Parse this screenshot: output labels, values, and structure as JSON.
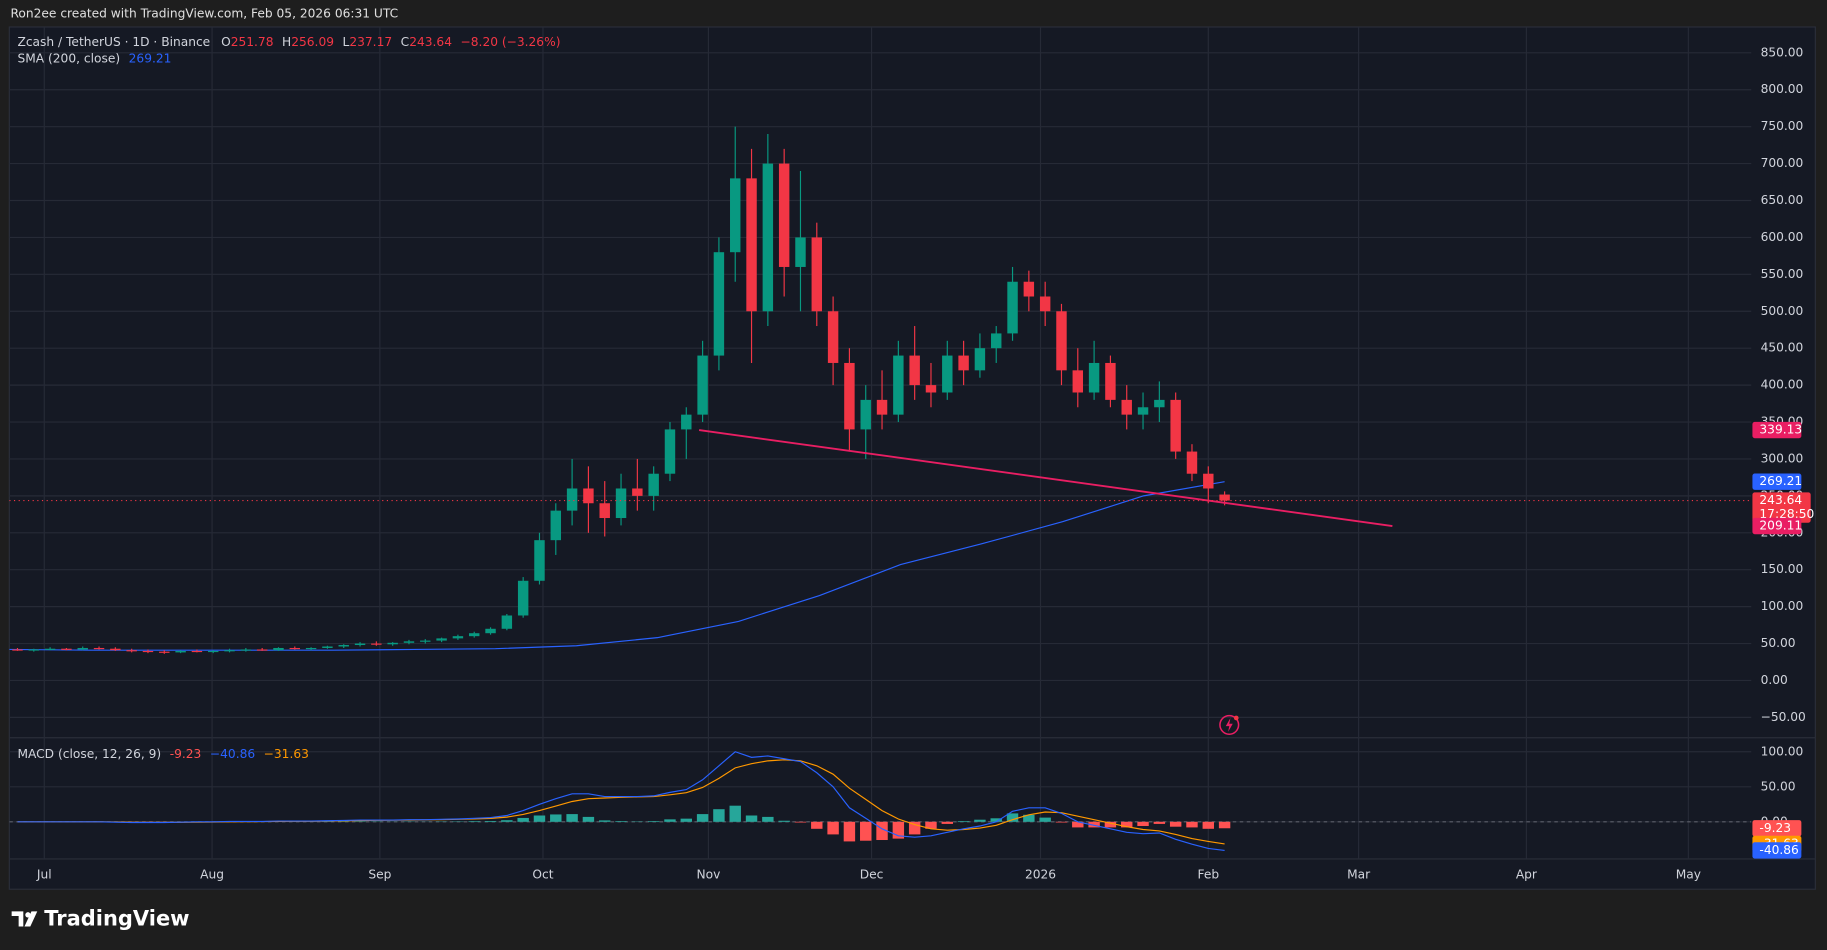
{
  "header": {
    "attribution": "Ron2ee created with TradingView.com, Feb 05, 2026 06:31 UTC"
  },
  "footer": {
    "brand": "TradingView"
  },
  "chart_data": [
    {
      "type": "candlestick",
      "title": "Zcash / TetherUS · 1D · Binance",
      "ohlc_labels": [
        "O",
        "H",
        "L",
        "C"
      ],
      "ohlc": [
        251.78,
        256.09,
        237.17,
        243.64
      ],
      "change": "−8.20 (−3.26%)",
      "countdown": "17:28:50",
      "colors": {
        "up": "#089981",
        "down": "#f23645"
      },
      "ylim": [
        -76,
        885
      ],
      "yticks": [
        {
          "value": -50,
          "label": "−50.00"
        },
        {
          "value": 0,
          "label": "0.00"
        },
        {
          "value": 50,
          "label": "50.00"
        },
        {
          "value": 100,
          "label": "100.00"
        },
        {
          "value": 150,
          "label": "150.00"
        },
        {
          "value": 200,
          "label": "200.00"
        },
        {
          "value": 250,
          "label": "250.00"
        },
        {
          "value": 300,
          "label": "300.00"
        },
        {
          "value": 350,
          "label": "350.00"
        },
        {
          "value": 400,
          "label": "400.00"
        },
        {
          "value": 450,
          "label": "450.00"
        },
        {
          "value": 500,
          "label": "500.00"
        },
        {
          "value": 550,
          "label": "550.00"
        },
        {
          "value": 600,
          "label": "600.00"
        },
        {
          "value": 650,
          "label": "650.00"
        },
        {
          "value": 700,
          "label": "700.00"
        },
        {
          "value": 750,
          "label": "750.00"
        },
        {
          "value": 800,
          "label": "800.00"
        },
        {
          "value": 850,
          "label": "850.00"
        }
      ],
      "time_axis": [
        "Jul",
        "Aug",
        "Sep",
        "Oct",
        "Nov",
        "Dec",
        "2026",
        "Feb",
        "Mar",
        "Apr",
        "May"
      ],
      "grid": true,
      "candles": [
        [
          42,
          44,
          40,
          41
        ],
        [
          41,
          43,
          39,
          42
        ],
        [
          42,
          45,
          41,
          43
        ],
        [
          43,
          44,
          41,
          42
        ],
        [
          42,
          46,
          41,
          44
        ],
        [
          44,
          46,
          42,
          43
        ],
        [
          43,
          45,
          40,
          41
        ],
        [
          41,
          43,
          38,
          40
        ],
        [
          40,
          42,
          37,
          39
        ],
        [
          39,
          41,
          36,
          38
        ],
        [
          38,
          41,
          37,
          40
        ],
        [
          40,
          42,
          38,
          39
        ],
        [
          39,
          41,
          37,
          40
        ],
        [
          40,
          43,
          38,
          41
        ],
        [
          41,
          44,
          39,
          42
        ],
        [
          42,
          44,
          40,
          41
        ],
        [
          41,
          45,
          40,
          44
        ],
        [
          44,
          46,
          42,
          43
        ],
        [
          43,
          45,
          41,
          44
        ],
        [
          44,
          47,
          43,
          46
        ],
        [
          46,
          49,
          44,
          48
        ],
        [
          48,
          52,
          46,
          50
        ],
        [
          50,
          53,
          47,
          49
        ],
        [
          49,
          52,
          47,
          51
        ],
        [
          51,
          55,
          49,
          53
        ],
        [
          53,
          56,
          50,
          54
        ],
        [
          54,
          58,
          52,
          57
        ],
        [
          57,
          62,
          55,
          60
        ],
        [
          60,
          66,
          58,
          64
        ],
        [
          64,
          72,
          62,
          70
        ],
        [
          70,
          90,
          68,
          88
        ],
        [
          88,
          140,
          85,
          135
        ],
        [
          135,
          200,
          130,
          190
        ],
        [
          190,
          240,
          170,
          230
        ],
        [
          230,
          300,
          210,
          260
        ],
        [
          260,
          290,
          200,
          240
        ],
        [
          240,
          270,
          195,
          220
        ],
        [
          220,
          280,
          210,
          260
        ],
        [
          260,
          300,
          230,
          250
        ],
        [
          250,
          290,
          230,
          280
        ],
        [
          280,
          350,
          270,
          340
        ],
        [
          340,
          370,
          300,
          360
        ],
        [
          360,
          460,
          350,
          440
        ],
        [
          440,
          600,
          420,
          580
        ],
        [
          580,
          750,
          540,
          680
        ],
        [
          680,
          720,
          430,
          500
        ],
        [
          500,
          740,
          480,
          700
        ],
        [
          700,
          720,
          520,
          560
        ],
        [
          560,
          690,
          500,
          600
        ],
        [
          600,
          620,
          480,
          500
        ],
        [
          500,
          520,
          400,
          430
        ],
        [
          430,
          450,
          310,
          340
        ],
        [
          340,
          400,
          300,
          380
        ],
        [
          380,
          420,
          340,
          360
        ],
        [
          360,
          460,
          350,
          440
        ],
        [
          440,
          480,
          380,
          400
        ],
        [
          400,
          430,
          370,
          390
        ],
        [
          390,
          460,
          380,
          440
        ],
        [
          440,
          460,
          400,
          420
        ],
        [
          420,
          470,
          410,
          450
        ],
        [
          450,
          480,
          430,
          470
        ],
        [
          470,
          560,
          460,
          540
        ],
        [
          540,
          555,
          500,
          520
        ],
        [
          520,
          540,
          480,
          500
        ],
        [
          500,
          510,
          400,
          420
        ],
        [
          420,
          450,
          370,
          390
        ],
        [
          390,
          460,
          380,
          430
        ],
        [
          430,
          440,
          370,
          380
        ],
        [
          380,
          400,
          340,
          360
        ],
        [
          360,
          390,
          340,
          370
        ],
        [
          370,
          405,
          350,
          380
        ],
        [
          380,
          390,
          300,
          310
        ],
        [
          310,
          320,
          270,
          280
        ],
        [
          280,
          290,
          240,
          260
        ],
        [
          251.78,
          256.09,
          237.17,
          243.64
        ]
      ],
      "sma": {
        "name": "SMA (200, close)",
        "color": "#2962ff",
        "values": [
          42,
          41,
          41,
          41,
          41,
          42,
          43,
          47,
          58,
          80,
          115,
          157,
          185,
          215,
          250,
          269.21
        ]
      },
      "trendline": {
        "color": "#e91e63",
        "values": [
          339.13,
          209.11
        ]
      }
    },
    {
      "type": "macd",
      "title": "MACD (close, 12, 26, 9)",
      "legend": [
        "-9.23",
        "−40.86",
        "−31.63"
      ],
      "ylim": [
        -53,
        120
      ],
      "yticks": [
        {
          "value": 0,
          "label": "0.00"
        },
        {
          "value": 50,
          "label": "50.00"
        },
        {
          "value": 100,
          "label": "100.00"
        }
      ],
      "histogram": {
        "color_up": "#26a69a",
        "color_down": "#ff5252",
        "badge": "-9.23",
        "values": [
          0,
          0,
          0,
          0,
          0,
          0,
          -0.3,
          -0.5,
          -0.3,
          -0.2,
          0.2,
          0.5,
          0.3,
          0.5,
          0.3,
          0.2,
          0.5,
          0.3,
          0.2,
          0.5,
          0.6,
          0.7,
          0.4,
          0.2,
          0.4,
          0.2,
          0.4,
          0.5,
          0.9,
          1.1,
          2.3,
          5.5,
          9,
          10.5,
          11,
          7,
          2,
          1,
          0.5,
          1,
          3.5,
          4.5,
          11,
          18,
          23,
          9,
          7,
          1.5,
          -1,
          -10,
          -18,
          -28,
          -27,
          -26,
          -24,
          -18,
          -10,
          -3,
          1,
          3,
          5,
          12,
          10,
          6,
          -1,
          -8,
          -8,
          -8,
          -8,
          -6,
          -3,
          -7,
          -8,
          -10,
          -9.23
        ]
      },
      "macd": {
        "color": "#2962ff",
        "badge": "-40.86",
        "values": [
          0,
          0,
          0,
          0,
          0,
          0,
          -0.5,
          -1,
          -1,
          -1,
          -0.5,
          0,
          0,
          0.5,
          0.5,
          0.5,
          1,
          1,
          1,
          1.5,
          2,
          2.5,
          2.5,
          2.5,
          3,
          3,
          3.5,
          4,
          5,
          6,
          9,
          16,
          25,
          33,
          40,
          40,
          36,
          36,
          36,
          37,
          42,
          46,
          60,
          80,
          100,
          92,
          94,
          90,
          86,
          70,
          50,
          20,
          5,
          -10,
          -20,
          -22,
          -20,
          -15,
          -10,
          -6,
          0,
          15,
          20,
          20,
          12,
          0,
          -5,
          -10,
          -15,
          -17,
          -16,
          -25,
          -32,
          -38,
          -40.86
        ]
      },
      "signal": {
        "color": "#ff9800",
        "badge": "-31.63",
        "values": [
          0,
          0,
          0,
          0,
          0,
          0,
          -0.2,
          -0.5,
          -0.7,
          -0.8,
          -0.7,
          -0.5,
          -0.3,
          0,
          0.2,
          0.3,
          0.5,
          0.7,
          0.8,
          1,
          1.4,
          1.8,
          2.1,
          2.3,
          2.6,
          2.8,
          3.1,
          3.5,
          4.1,
          4.9,
          6.7,
          10.5,
          16,
          22.5,
          29,
          33,
          34,
          35,
          35.5,
          36,
          38.5,
          41.5,
          49,
          62,
          77,
          83,
          87,
          88.5,
          87,
          80,
          68,
          48,
          32,
          16,
          4,
          -4,
          -10,
          -12,
          -11,
          -9,
          -5,
          3,
          10,
          14,
          13,
          8,
          3,
          -2,
          -7,
          -11,
          -13,
          -18,
          -24,
          -28,
          -31.63
        ]
      }
    }
  ]
}
